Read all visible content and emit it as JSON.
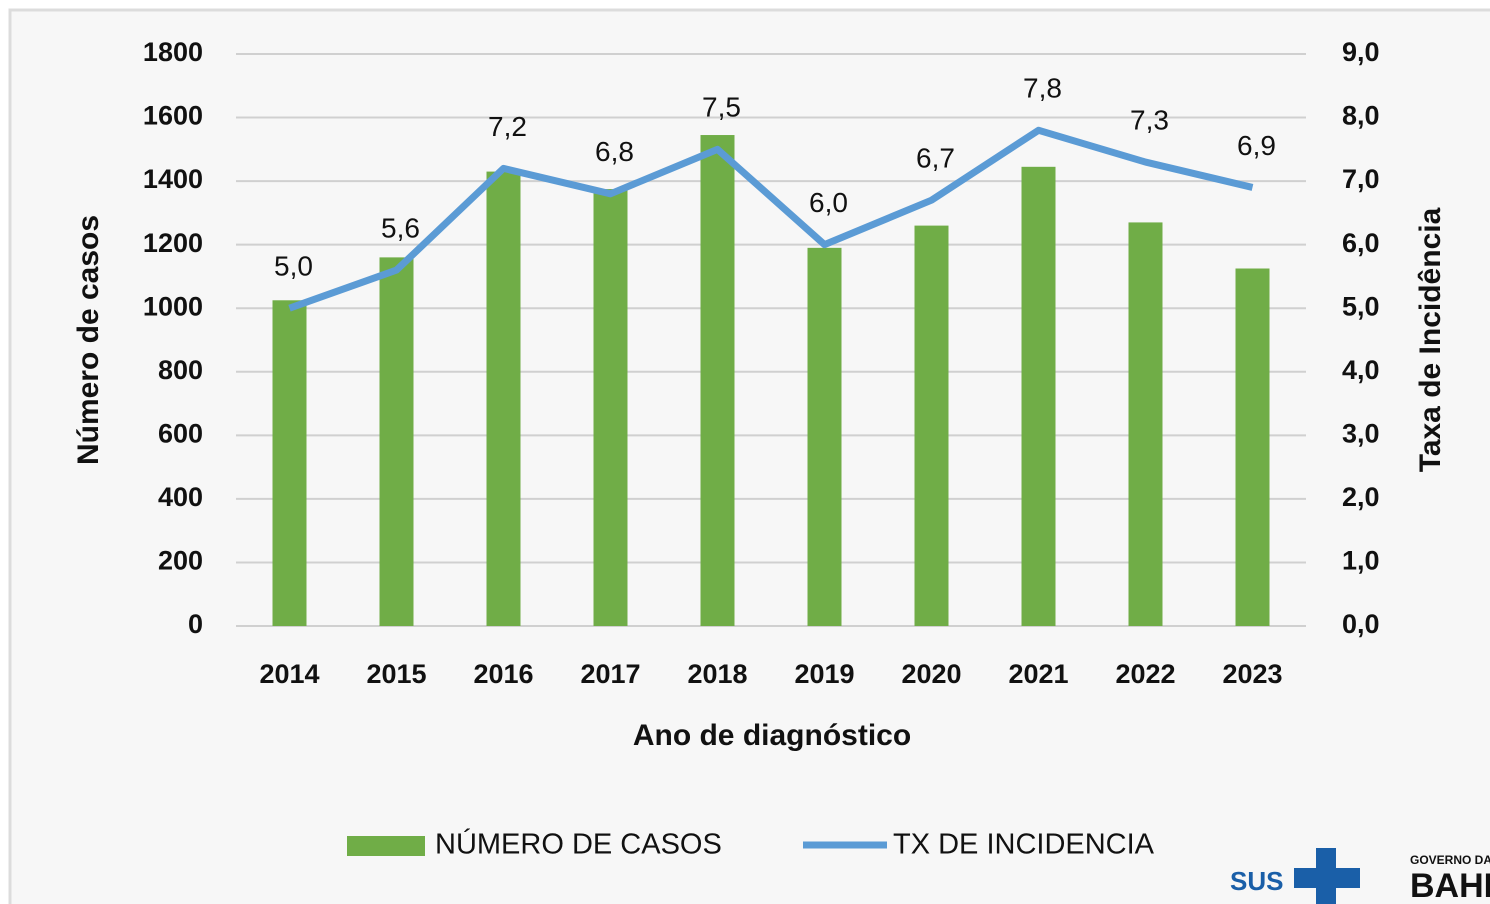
{
  "chart_data": {
    "type": "bar",
    "categories": [
      "2014",
      "2015",
      "2016",
      "2017",
      "2018",
      "2019",
      "2020",
      "2021",
      "2022",
      "2023"
    ],
    "series": [
      {
        "name": "NÚMERO DE CASOS",
        "type": "bar",
        "color": "#70ad47",
        "values": [
          1025,
          1160,
          1430,
          1375,
          1545,
          1190,
          1260,
          1445,
          1270,
          1125
        ]
      },
      {
        "name": "TX DE INCIDENCIA",
        "type": "line",
        "axis": "y2",
        "color": "#5b9bd5",
        "values": [
          5.0,
          5.6,
          7.2,
          6.8,
          7.5,
          6.0,
          6.7,
          7.8,
          7.3,
          6.9
        ],
        "value_labels": [
          "5,0",
          "5,6",
          "7,2",
          "6,8",
          "7,5",
          "6,0",
          "6,7",
          "7,8",
          "7,3",
          "6,9"
        ]
      }
    ],
    "ylabel": "Número de casos",
    "y2label": "Taxa de Incidência",
    "xlabel": "Ano de diagnóstico",
    "ylim": [
      0,
      1800
    ],
    "yticks": [
      0,
      200,
      400,
      600,
      800,
      1000,
      1200,
      1400,
      1600,
      1800
    ],
    "y2lim": [
      0,
      9
    ],
    "y2ticks": [
      {
        "value": 0,
        "label": "0,0"
      },
      {
        "value": 1,
        "label": "1,0"
      },
      {
        "value": 2,
        "label": "2,0"
      },
      {
        "value": 3,
        "label": "3,0"
      },
      {
        "value": 4,
        "label": "4,0"
      },
      {
        "value": 5,
        "label": "5,0"
      },
      {
        "value": 6,
        "label": "6,0"
      },
      {
        "value": 7,
        "label": "7,0"
      },
      {
        "value": 8,
        "label": "8,0"
      },
      {
        "value": 9,
        "label": "9,0"
      }
    ],
    "grid": true,
    "legend": "bottom"
  },
  "logos": {
    "sus": "SUS",
    "governo": "GOVERNO DA",
    "bahia": "BAHIA"
  }
}
